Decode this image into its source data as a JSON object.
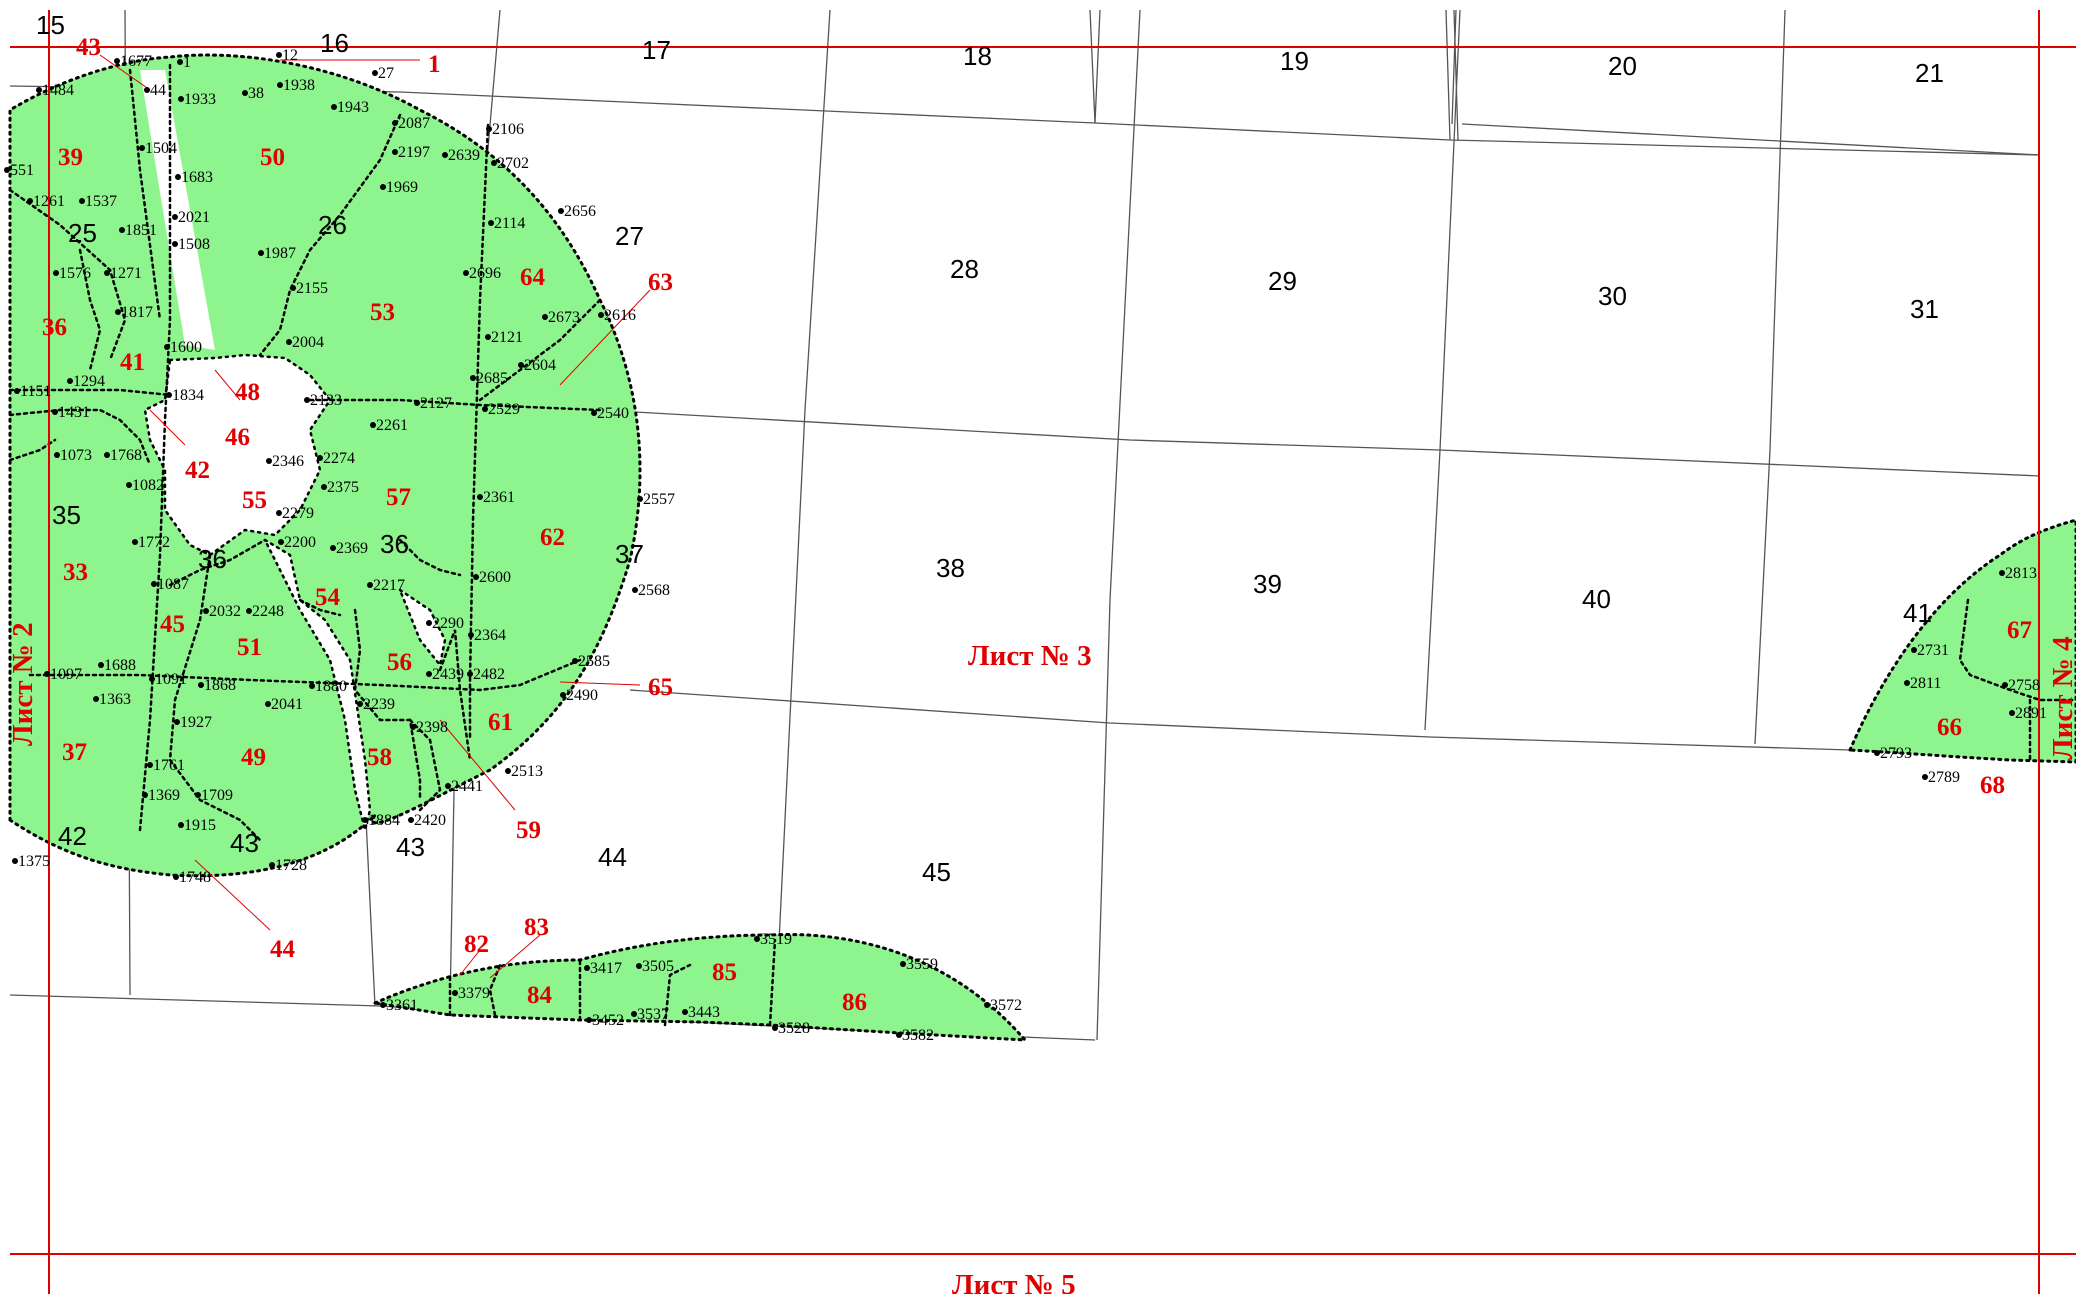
{
  "colors": {
    "zone_fill": "#8ef58e",
    "boundary": "#000000",
    "sheet_line": "#e00000",
    "zone_label": "#e00000"
  },
  "sheets": {
    "main": "Лист № 3",
    "left": "Лист № 2",
    "right": "Лист № 4",
    "bottom": "Лист № 5"
  },
  "parcels": [
    {
      "id": "15",
      "label": "15"
    },
    {
      "id": "16",
      "label": "16"
    },
    {
      "id": "17",
      "label": "17"
    },
    {
      "id": "18",
      "label": "18"
    },
    {
      "id": "19",
      "label": "19"
    },
    {
      "id": "20",
      "label": "20"
    },
    {
      "id": "21",
      "label": "21"
    },
    {
      "id": "25",
      "label": "25"
    },
    {
      "id": "26",
      "label": "26"
    },
    {
      "id": "27",
      "label": "27"
    },
    {
      "id": "28",
      "label": "28"
    },
    {
      "id": "29",
      "label": "29"
    },
    {
      "id": "30",
      "label": "30"
    },
    {
      "id": "31",
      "label": "31"
    },
    {
      "id": "35",
      "label": "35"
    },
    {
      "id": "36a",
      "label": "36"
    },
    {
      "id": "36b",
      "label": "36"
    },
    {
      "id": "37",
      "label": "37"
    },
    {
      "id": "38",
      "label": "38"
    },
    {
      "id": "39",
      "label": "39"
    },
    {
      "id": "40",
      "label": "40"
    },
    {
      "id": "41",
      "label": "41"
    },
    {
      "id": "42",
      "label": "42"
    },
    {
      "id": "43a",
      "label": "43"
    },
    {
      "id": "43b",
      "label": "43"
    },
    {
      "id": "44",
      "label": "44"
    },
    {
      "id": "45",
      "label": "45"
    }
  ],
  "zones": [
    {
      "id": "z1",
      "label": "1"
    },
    {
      "id": "z43",
      "label": "43"
    },
    {
      "id": "z39",
      "label": "39"
    },
    {
      "id": "z50",
      "label": "50"
    },
    {
      "id": "z36",
      "label": "36"
    },
    {
      "id": "z41",
      "label": "41"
    },
    {
      "id": "z48",
      "label": "48"
    },
    {
      "id": "z46",
      "label": "46"
    },
    {
      "id": "z42",
      "label": "42"
    },
    {
      "id": "z53",
      "label": "53"
    },
    {
      "id": "z64",
      "label": "64"
    },
    {
      "id": "z63",
      "label": "63"
    },
    {
      "id": "z55",
      "label": "55"
    },
    {
      "id": "z57",
      "label": "57"
    },
    {
      "id": "z62",
      "label": "62"
    },
    {
      "id": "z33",
      "label": "33"
    },
    {
      "id": "z45",
      "label": "45"
    },
    {
      "id": "z54",
      "label": "54"
    },
    {
      "id": "z51",
      "label": "51"
    },
    {
      "id": "z56",
      "label": "56"
    },
    {
      "id": "z65",
      "label": "65"
    },
    {
      "id": "z61",
      "label": "61"
    },
    {
      "id": "z37",
      "label": "37"
    },
    {
      "id": "z49",
      "label": "49"
    },
    {
      "id": "z58",
      "label": "58"
    },
    {
      "id": "z59",
      "label": "59"
    },
    {
      "id": "z44",
      "label": "44"
    },
    {
      "id": "z82",
      "label": "82"
    },
    {
      "id": "z83",
      "label": "83"
    },
    {
      "id": "z84",
      "label": "84"
    },
    {
      "id": "z85",
      "label": "85"
    },
    {
      "id": "z86",
      "label": "86"
    },
    {
      "id": "z67",
      "label": "67"
    },
    {
      "id": "z66",
      "label": "66"
    },
    {
      "id": "z68",
      "label": "68"
    }
  ],
  "points": [
    {
      "id": "p1677",
      "label": "1677"
    },
    {
      "id": "p1",
      "label": "1"
    },
    {
      "id": "p12",
      "label": "12"
    },
    {
      "id": "p27",
      "label": "27"
    },
    {
      "id": "p1484",
      "label": "1484"
    },
    {
      "id": "p44",
      "label": "44"
    },
    {
      "id": "p1933",
      "label": "1933"
    },
    {
      "id": "p38",
      "label": "38"
    },
    {
      "id": "p1938",
      "label": "1938"
    },
    {
      "id": "p1943",
      "label": "1943"
    },
    {
      "id": "p2087",
      "label": "2087"
    },
    {
      "id": "p2106",
      "label": "2106"
    },
    {
      "id": "p2197",
      "label": "2197"
    },
    {
      "id": "p2639",
      "label": "2639"
    },
    {
      "id": "p2702",
      "label": "2702"
    },
    {
      "id": "p1504",
      "label": "1504"
    },
    {
      "id": "p551",
      "label": "551"
    },
    {
      "id": "p1683",
      "label": "1683"
    },
    {
      "id": "p1969",
      "label": "1969"
    },
    {
      "id": "p1261",
      "label": "1261"
    },
    {
      "id": "p1537",
      "label": "1537"
    },
    {
      "id": "p2021",
      "label": "2021"
    },
    {
      "id": "p2656",
      "label": "2656"
    },
    {
      "id": "p1851",
      "label": "1851"
    },
    {
      "id": "p2114",
      "label": "2114"
    },
    {
      "id": "p1508",
      "label": "1508"
    },
    {
      "id": "p1987",
      "label": "1987"
    },
    {
      "id": "p1576",
      "label": "1576"
    },
    {
      "id": "p1271",
      "label": "1271"
    },
    {
      "id": "p2696",
      "label": "2696"
    },
    {
      "id": "p2155",
      "label": "2155"
    },
    {
      "id": "p1817",
      "label": "1817"
    },
    {
      "id": "p2673",
      "label": "2673"
    },
    {
      "id": "p2616",
      "label": "2616"
    },
    {
      "id": "p2121",
      "label": "2121"
    },
    {
      "id": "p1600",
      "label": "1600"
    },
    {
      "id": "p2004",
      "label": "2004"
    },
    {
      "id": "p2604",
      "label": "2604"
    },
    {
      "id": "p1294",
      "label": "1294"
    },
    {
      "id": "p2685",
      "label": "2685"
    },
    {
      "id": "p1151",
      "label": "1151"
    },
    {
      "id": "p1834",
      "label": "1834"
    },
    {
      "id": "p2133",
      "label": "2133"
    },
    {
      "id": "p2127",
      "label": "2127"
    },
    {
      "id": "p2529",
      "label": "2529"
    },
    {
      "id": "p2540",
      "label": "2540"
    },
    {
      "id": "p1431",
      "label": "1431"
    },
    {
      "id": "p2261",
      "label": "2261"
    },
    {
      "id": "p1073",
      "label": "1073"
    },
    {
      "id": "p1768",
      "label": "1768"
    },
    {
      "id": "p2346",
      "label": "2346"
    },
    {
      "id": "p2274",
      "label": "2274"
    },
    {
      "id": "p1082",
      "label": "1082"
    },
    {
      "id": "p2375",
      "label": "2375"
    },
    {
      "id": "p2361",
      "label": "2361"
    },
    {
      "id": "p2557",
      "label": "2557"
    },
    {
      "id": "p2279",
      "label": "2279"
    },
    {
      "id": "p1772",
      "label": "1772"
    },
    {
      "id": "p2200",
      "label": "2200"
    },
    {
      "id": "p2369",
      "label": "2369"
    },
    {
      "id": "p2600",
      "label": "2600"
    },
    {
      "id": "p1087",
      "label": "1087"
    },
    {
      "id": "p2217",
      "label": "2217"
    },
    {
      "id": "p2568",
      "label": "2568"
    },
    {
      "id": "p2032",
      "label": "2032"
    },
    {
      "id": "p2248",
      "label": "2248"
    },
    {
      "id": "p2290",
      "label": "2290"
    },
    {
      "id": "p2364",
      "label": "2364"
    },
    {
      "id": "p2585",
      "label": "2585"
    },
    {
      "id": "p1688",
      "label": "1688"
    },
    {
      "id": "p1097",
      "label": "1097"
    },
    {
      "id": "p1091",
      "label": "1091"
    },
    {
      "id": "p1868",
      "label": "1868"
    },
    {
      "id": "p1880",
      "label": "1880"
    },
    {
      "id": "p2439",
      "label": "2439"
    },
    {
      "id": "p2482",
      "label": "2482"
    },
    {
      "id": "p2490",
      "label": "2490"
    },
    {
      "id": "p1363",
      "label": "1363"
    },
    {
      "id": "p2041",
      "label": "2041"
    },
    {
      "id": "p2239",
      "label": "2239"
    },
    {
      "id": "p1927",
      "label": "1927"
    },
    {
      "id": "p2398",
      "label": "2398"
    },
    {
      "id": "p1761",
      "label": "1761"
    },
    {
      "id": "p2513",
      "label": "2513"
    },
    {
      "id": "p2441",
      "label": "2441"
    },
    {
      "id": "p1369",
      "label": "1369"
    },
    {
      "id": "p1709",
      "label": "1709"
    },
    {
      "id": "p1915",
      "label": "1915"
    },
    {
      "id": "p1884",
      "label": "1884"
    },
    {
      "id": "p2420",
      "label": "2420"
    },
    {
      "id": "p1375",
      "label": "1375"
    },
    {
      "id": "p1728",
      "label": "1728"
    },
    {
      "id": "p1748",
      "label": "1748"
    },
    {
      "id": "p2813",
      "label": "2813"
    },
    {
      "id": "p2731",
      "label": "2731"
    },
    {
      "id": "p2811",
      "label": "2811"
    },
    {
      "id": "p2758",
      "label": "2758"
    },
    {
      "id": "p2891",
      "label": "2891"
    },
    {
      "id": "p2793",
      "label": "2793"
    },
    {
      "id": "p2789",
      "label": "2789"
    },
    {
      "id": "p3519",
      "label": "3519"
    },
    {
      "id": "p3559",
      "label": "3559"
    },
    {
      "id": "p3417",
      "label": "3417"
    },
    {
      "id": "p3505",
      "label": "3505"
    },
    {
      "id": "p3379",
      "label": "3379"
    },
    {
      "id": "p3361",
      "label": "3361"
    },
    {
      "id": "p3443",
      "label": "3443"
    },
    {
      "id": "p3537",
      "label": "3537"
    },
    {
      "id": "p3452",
      "label": "3452"
    },
    {
      "id": "p3528",
      "label": "3528"
    },
    {
      "id": "p3582",
      "label": "3582"
    },
    {
      "id": "p3572",
      "label": "3572"
    }
  ]
}
